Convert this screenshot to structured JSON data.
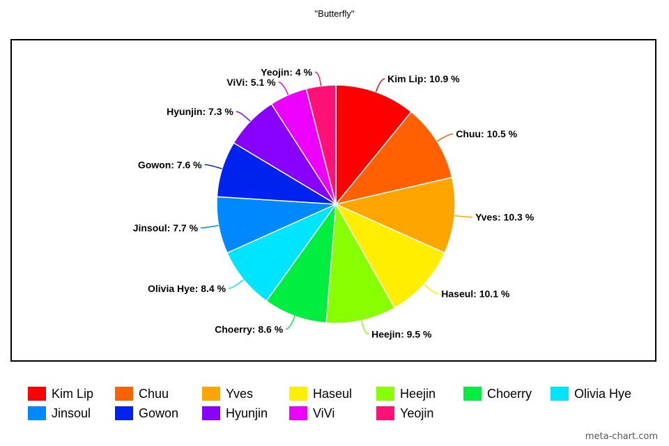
{
  "chart_data": {
    "type": "pie",
    "title": "\"Butterfly\"",
    "unit": "%",
    "slices": [
      {
        "label": "Kim Lip",
        "value": 10.9,
        "display": "10.9",
        "color": "#ff0000"
      },
      {
        "label": "Chuu",
        "value": 10.5,
        "display": "10.5",
        "color": "#ff6000"
      },
      {
        "label": "Yves",
        "value": 10.3,
        "display": "10.3",
        "color": "#ffa500"
      },
      {
        "label": "Haseul",
        "value": 10.1,
        "display": "10.1",
        "color": "#ffee00"
      },
      {
        "label": "Heejin",
        "value": 9.5,
        "display": "9.5",
        "color": "#88ff00"
      },
      {
        "label": "Choerry",
        "value": 8.6,
        "display": "8.6",
        "color": "#00ee40"
      },
      {
        "label": "Olivia Hye",
        "value": 8.4,
        "display": "8.4",
        "color": "#00e5ff"
      },
      {
        "label": "Jinsoul",
        "value": 7.7,
        "display": "7.7",
        "color": "#0088ff"
      },
      {
        "label": "Gowon",
        "value": 7.6,
        "display": "7.6",
        "color": "#0022ee"
      },
      {
        "label": "Hyunjin",
        "value": 7.3,
        "display": "7.3",
        "color": "#8800ff"
      },
      {
        "label": "ViVi",
        "value": 5.1,
        "display": "5.1",
        "color": "#ee00ff"
      },
      {
        "label": "Yeojin",
        "value": 4.0,
        "display": "4",
        "color": "#ff1177"
      }
    ],
    "legend_position": "bottom"
  },
  "watermark": "meta-chart.com"
}
